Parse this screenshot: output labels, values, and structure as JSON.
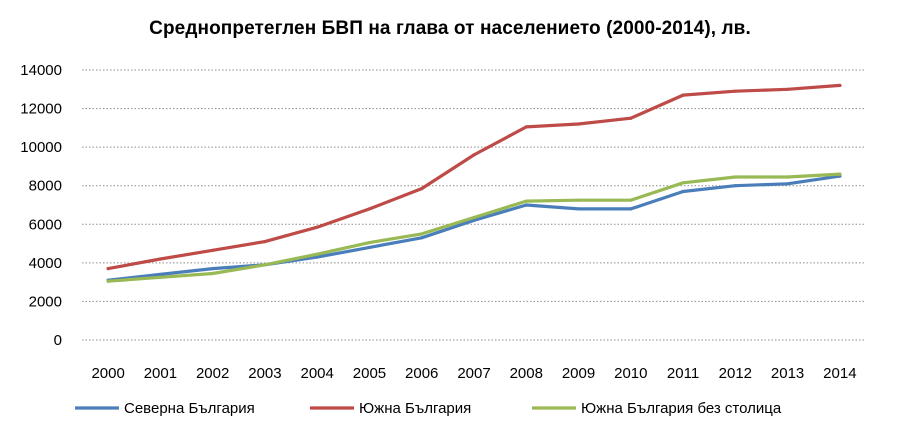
{
  "chart_data": {
    "type": "line",
    "title": "Среднопретеглен БВП на глава от населението (2000-2014), лв.",
    "xlabel": "",
    "ylabel": "",
    "categories": [
      "2000",
      "2001",
      "2002",
      "2003",
      "2004",
      "2005",
      "2006",
      "2007",
      "2008",
      "2009",
      "2010",
      "2011",
      "2012",
      "2013",
      "2014"
    ],
    "ylim": [
      0,
      14000
    ],
    "yticks": [
      0,
      2000,
      4000,
      6000,
      8000,
      10000,
      12000,
      14000
    ],
    "grid": "horizontal dotted",
    "legend_position": "bottom",
    "series": [
      {
        "name": "Северна България",
        "color": "#4a7ebb",
        "values": [
          3100,
          3400,
          3700,
          3900,
          4300,
          4800,
          5300,
          6200,
          7000,
          6800,
          6800,
          7700,
          8000,
          8100,
          8500
        ]
      },
      {
        "name": "Южна България",
        "color": "#be4b48",
        "values": [
          3700,
          4200,
          4650,
          5100,
          5850,
          6800,
          7850,
          9600,
          11050,
          11200,
          11500,
          12700,
          12900,
          13000,
          13200
        ]
      },
      {
        "name": "Южна България без столица",
        "color": "#98b954",
        "values": [
          3050,
          3250,
          3450,
          3900,
          4450,
          5050,
          5500,
          6350,
          7200,
          7250,
          7250,
          8150,
          8450,
          8450,
          8600
        ]
      }
    ]
  }
}
